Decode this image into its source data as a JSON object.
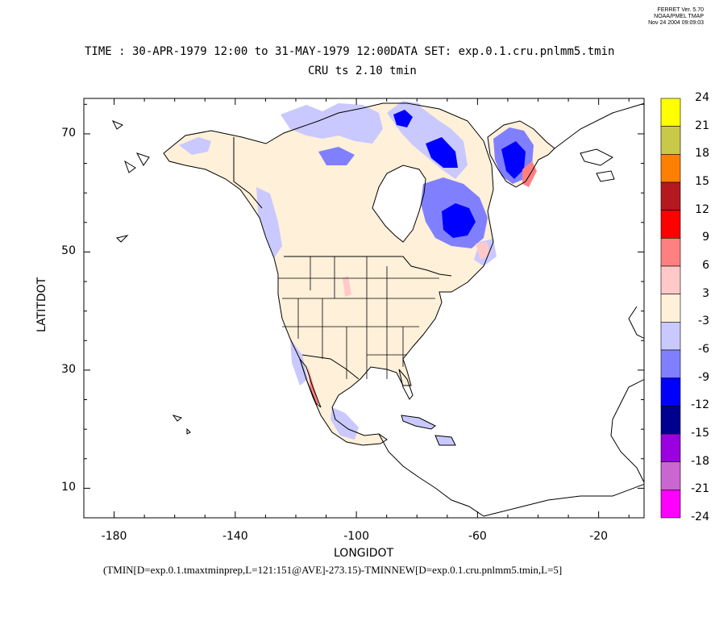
{
  "meta": {
    "ferret_version": "FERRET Ver. 5.70",
    "lab": "NOAA/PMEL TMAP",
    "timestamp": "Nov 24 2004 09:09:03"
  },
  "header": {
    "line1": "TIME : 30-APR-1979 12:00 to 31-MAY-1979 12:00DATA SET: exp.0.1.cru.pnlmm5.tmin",
    "line2": "CRU ts 2.10 tmin"
  },
  "axes": {
    "xlabel": "LONGIDOT",
    "ylabel": "LATITDOT",
    "xticks": [
      "-180",
      "-140",
      "-100",
      "-60",
      "-20"
    ],
    "yticks": [
      "70",
      "50",
      "30",
      "10"
    ],
    "xrange": [
      -190,
      -5
    ],
    "yrange": [
      5,
      76
    ]
  },
  "colorbar": {
    "labels": [
      "24",
      "21",
      "18",
      "15",
      "12",
      "9",
      "6",
      "3",
      "-3",
      "-6",
      "-9",
      "-12",
      "-15",
      "-18",
      "-21",
      "-24"
    ],
    "colors": [
      "#ffff00",
      "#c9c949",
      "#ff8000",
      "#b3191f",
      "#ff0000",
      "#ff8080",
      "#ffc9c9",
      "#fff0d9",
      "#c9c9ff",
      "#8080ff",
      "#0000ff",
      "#00008f",
      "#9b00e0",
      "#c966d1",
      "#ff00ff"
    ]
  },
  "footer": "(TMIN[D=exp.0.1.tmaxtminprep,L=121:151@AVE]-273.15)-TMINNEW[D=exp.0.1.cru.pnlmm5.tmin,L=5]",
  "map_colors": {
    "land": "#fff0d9",
    "light_blue": "#c9c9ff",
    "mid_blue": "#8080ff",
    "blue": "#0000ff",
    "dark_blue": "#00008f",
    "pink": "#ffc9c9",
    "light_red": "#ff8080"
  }
}
